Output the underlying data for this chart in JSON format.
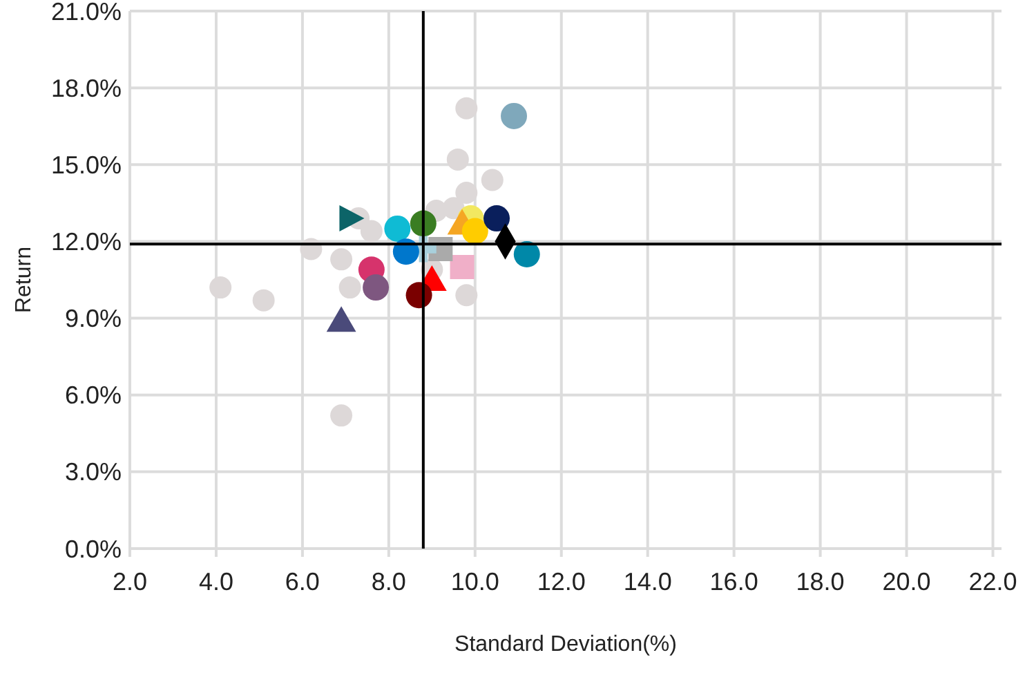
{
  "chart_data": {
    "type": "scatter",
    "xlabel": "Standard Deviation(%)",
    "ylabel": "Return",
    "xlim": [
      2,
      22.2
    ],
    "ylim": [
      0,
      21
    ],
    "xticks": [
      {
        "value": 2,
        "label": "2.0"
      },
      {
        "value": 4,
        "label": "4.0"
      },
      {
        "value": 6,
        "label": "6.0"
      },
      {
        "value": 8,
        "label": "8.0"
      },
      {
        "value": 10,
        "label": "10.0"
      },
      {
        "value": 12,
        "label": "12.0"
      },
      {
        "value": 14,
        "label": "14.0"
      },
      {
        "value": 16,
        "label": "16.0"
      },
      {
        "value": 18,
        "label": "18.0"
      },
      {
        "value": 20,
        "label": "20.0"
      },
      {
        "value": 22,
        "label": "22.0"
      }
    ],
    "yticks": [
      {
        "value": 0,
        "label": "0.0%"
      },
      {
        "value": 3,
        "label": "3.0%"
      },
      {
        "value": 6,
        "label": "6.0%"
      },
      {
        "value": 9,
        "label": "9.0%"
      },
      {
        "value": 12,
        "label": "12.0%"
      },
      {
        "value": 15,
        "label": "15.0%"
      },
      {
        "value": 18,
        "label": "18.0%"
      },
      {
        "value": 21,
        "label": "21.0%"
      }
    ],
    "grid": true,
    "marker": "circle",
    "ref_lines": [
      {
        "axis": "x",
        "value": 8.8,
        "color": "#000000"
      },
      {
        "axis": "y",
        "value": 11.9,
        "color": "#000000"
      }
    ],
    "series": [
      {
        "color": "#ddd8d8",
        "x": [
          9.8,
          9.6,
          10.4,
          9.8,
          9.1,
          9.5,
          7.3,
          7.6,
          9.8,
          7.1,
          6.2,
          6.9,
          4.1,
          5.1,
          6.9,
          9.0
        ],
        "values": [
          17.2,
          15.2,
          14.4,
          13.9,
          13.2,
          13.3,
          12.9,
          12.4,
          9.9,
          10.2,
          11.7,
          11.3,
          10.2,
          9.7,
          5.2,
          10.9
        ]
      },
      {
        "color": "#7fa8bb",
        "x": [
          10.9
        ],
        "values": [
          16.9
        ]
      },
      {
        "color": "#0c6468",
        "marker": "triangle-right",
        "x": [
          7.1
        ],
        "values": [
          12.9
        ]
      },
      {
        "color": "#0fbbd4",
        "x": [
          8.2
        ],
        "values": [
          12.5
        ]
      },
      {
        "color": "#3a7d22",
        "x": [
          8.8
        ],
        "values": [
          12.7
        ]
      },
      {
        "color": "#f2e860",
        "x": [
          9.9
        ],
        "values": [
          12.9
        ]
      },
      {
        "color": "#f5a623",
        "marker": "triangle",
        "x": [
          9.7
        ],
        "values": [
          12.6
        ]
      },
      {
        "color": "#ffcc00",
        "x": [
          10.0
        ],
        "values": [
          12.4
        ]
      },
      {
        "color": "#0a1f5c",
        "x": [
          10.5
        ],
        "values": [
          12.9
        ]
      },
      {
        "color": "#000000",
        "marker": "diamond",
        "x": [
          10.7
        ],
        "values": [
          12.0
        ]
      },
      {
        "color": "#0088a8",
        "x": [
          11.2
        ],
        "values": [
          11.5
        ]
      },
      {
        "color": "#f0afc8",
        "marker": "square",
        "x": [
          9.7
        ],
        "values": [
          11.0
        ]
      },
      {
        "color": "#aaaaaa",
        "marker": "square",
        "x": [
          9.2
        ],
        "values": [
          11.7
        ]
      },
      {
        "color": "#a8d0dc",
        "marker": "cross",
        "x": [
          8.8
        ],
        "values": [
          11.7
        ]
      },
      {
        "color": "#0077cc",
        "x": [
          8.4
        ],
        "values": [
          11.6
        ]
      },
      {
        "color": "#ff0000",
        "marker": "triangle",
        "x": [
          9.0
        ],
        "values": [
          10.4
        ]
      },
      {
        "color": "#7a0000",
        "x": [
          8.7
        ],
        "values": [
          9.9
        ]
      },
      {
        "color": "#d6336c",
        "x": [
          7.6
        ],
        "values": [
          10.9
        ]
      },
      {
        "color": "#7e5780",
        "x": [
          7.7
        ],
        "values": [
          10.2
        ]
      },
      {
        "color": "#4a4a7a",
        "marker": "triangle",
        "x": [
          6.9
        ],
        "values": [
          8.8
        ]
      }
    ]
  }
}
